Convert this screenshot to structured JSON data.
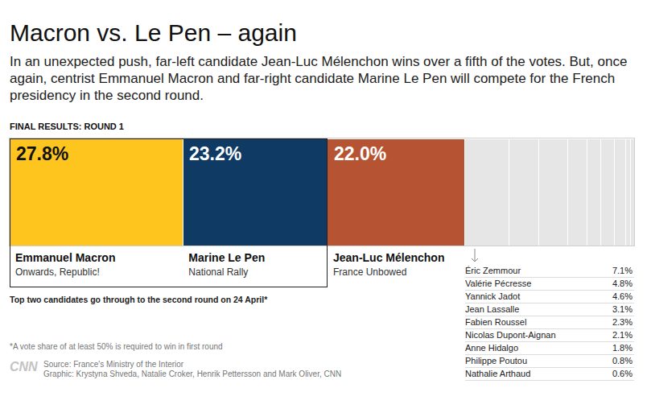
{
  "chart_data": {
    "type": "bar",
    "orientation": "horizontal",
    "stacked": true,
    "data_labels": true,
    "tick_labels": false,
    "title": "Macron vs. Le Pen – again",
    "subtitle": "In an unexpected push, far-left candidate Jean-Luc Mélenchon wins over a fifth of the votes. But, once again, centrist Emmanuel Macron and far-right candidate Marine Le Pen will compete for the French presidency in the second round.",
    "heading": "FINAL RESULTS: ROUND 1",
    "xlim": [
      0,
      100.2
    ],
    "series": [
      {
        "name": "Emmanuel Macron",
        "party": "Onwards, Republic!",
        "color": "#fdc51e",
        "values": [
          27.8
        ],
        "value_labels": [
          "27.8%"
        ]
      },
      {
        "name": "Marine Le Pen",
        "party": "National Rally",
        "color": "#0f3a63",
        "values": [
          23.2
        ],
        "value_labels": [
          "23.2%"
        ]
      },
      {
        "name": "Jean-Luc Mélenchon",
        "party": "France Unbowed",
        "color": "#b65333",
        "values": [
          22.0
        ],
        "value_labels": [
          "22.0%"
        ]
      }
    ],
    "others": [
      {
        "name": "Éric Zemmour",
        "color": "#e6e6e6",
        "values": [
          7.1
        ],
        "value_labels": [
          "7.1%"
        ]
      },
      {
        "name": "Valérie Pécresse",
        "color": "#e6e6e6",
        "values": [
          4.8
        ],
        "value_labels": [
          "4.8%"
        ]
      },
      {
        "name": "Yannick Jadot",
        "color": "#e6e6e6",
        "values": [
          4.6
        ],
        "value_labels": [
          "4.6%"
        ]
      },
      {
        "name": "Jean Lassalle",
        "color": "#e6e6e6",
        "values": [
          3.1
        ],
        "value_labels": [
          "3.1%"
        ]
      },
      {
        "name": "Fabien Roussel",
        "color": "#e6e6e6",
        "values": [
          2.3
        ],
        "value_labels": [
          "2.3%"
        ]
      },
      {
        "name": "Nicolas Dupont-Aignan",
        "color": "#e6e6e6",
        "values": [
          2.1
        ],
        "value_labels": [
          "2.1%"
        ]
      },
      {
        "name": "Anne Hidalgo",
        "color": "#e6e6e6",
        "values": [
          1.8
        ],
        "value_labels": [
          "1.8%"
        ]
      },
      {
        "name": "Philippe Poutou",
        "color": "#e6e6e6",
        "values": [
          0.8
        ],
        "value_labels": [
          "0.8%"
        ]
      },
      {
        "name": "Nathalie Arthaud",
        "color": "#e6e6e6",
        "values": [
          0.6
        ],
        "value_labels": [
          "0.6%"
        ]
      }
    ],
    "note": "Top two candidates go through to the second round on 24 April*",
    "footnote": "*A vote share of at least 50% is required to win in first round",
    "logo": "CNN",
    "source": "Source: France's Ministry of the Interior",
    "credit": "Graphic: Krystyna Shveda, Natalie Croker, Henrik Pettersson and Mark Oliver, CNN"
  }
}
